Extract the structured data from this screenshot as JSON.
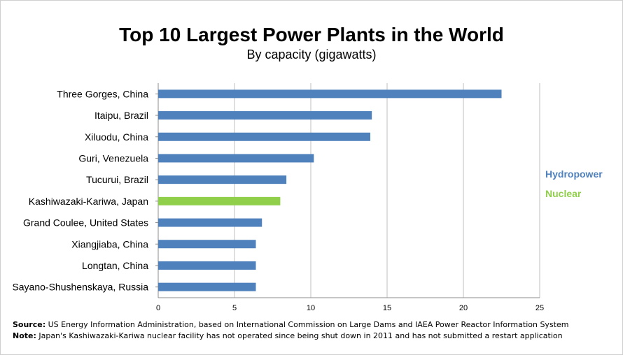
{
  "chart_data": {
    "type": "bar",
    "orientation": "horizontal",
    "title": "Top 10 Largest Power Plants in the World",
    "subtitle": "By capacity  (gigawatts)",
    "categories": [
      "Three Gorges, China",
      "Itaipu, Brazil",
      "Xiluodu, China",
      "Guri, Venezuela",
      "Tucurui, Brazil",
      "Kashiwazaki-Kariwa, Japan",
      "Grand Coulee, United States",
      "Xiangjiaba, China",
      "Longtan, China",
      "Sayano-Shushenskaya, Russia"
    ],
    "values": [
      22.5,
      14.0,
      13.9,
      10.2,
      8.4,
      8.0,
      6.8,
      6.4,
      6.4,
      6.4
    ],
    "bar_types": [
      "Hydropower",
      "Hydropower",
      "Hydropower",
      "Hydropower",
      "Hydropower",
      "Nuclear",
      "Hydropower",
      "Hydropower",
      "Hydropower",
      "Hydropower"
    ],
    "xlim": [
      0,
      25
    ],
    "xticks": [
      "0",
      "5",
      "10",
      "15",
      "20",
      "25"
    ],
    "grid": true,
    "legend_position": "right",
    "legend": [
      {
        "label": "Hydropower",
        "color": "#4f81bd"
      },
      {
        "label": "Nuclear",
        "color": "#8fcf4a"
      }
    ]
  },
  "footer": {
    "source_label": "Source:",
    "source_text": " US Energy Information Administration, based on International Commission on Large Dams and IAEA Power Reactor Information System",
    "note_label": "Note:",
    "note_text": " Japan's Kashiwazaki-Kariwa nuclear facility has not operated since being shut down in 2011 and has not submitted a restart application"
  }
}
